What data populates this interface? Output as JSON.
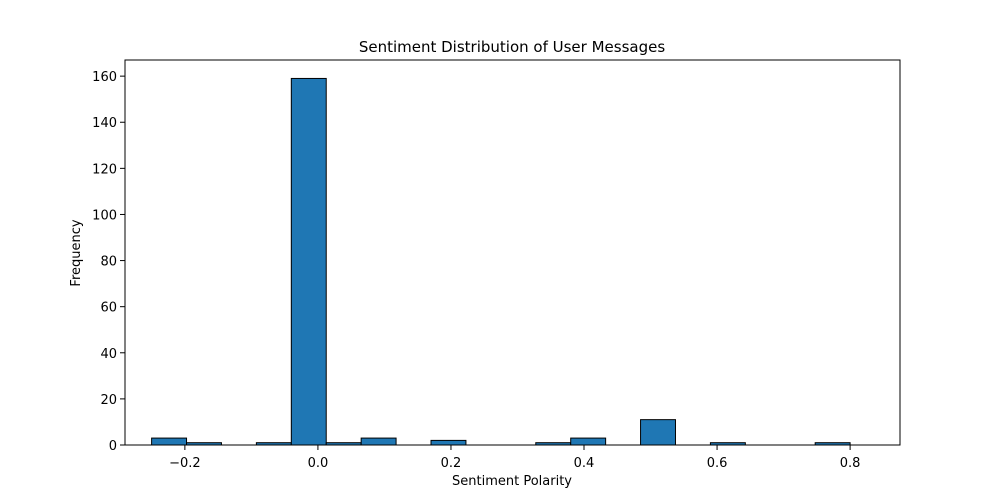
{
  "chart_data": {
    "type": "bar",
    "title": "Sentiment Distribution of User Messages",
    "xlabel": "Sentiment Polarity",
    "ylabel": "Frequency",
    "xlim": [
      -0.29,
      0.875
    ],
    "ylim": [
      0,
      167
    ],
    "x_ticks": [
      -0.2,
      0.0,
      0.2,
      0.4,
      0.6,
      0.8
    ],
    "x_tick_labels": [
      "−0.2",
      "0.0",
      "0.2",
      "0.4",
      "0.6",
      "0.8"
    ],
    "y_ticks": [
      0,
      20,
      40,
      60,
      80,
      100,
      120,
      140,
      160
    ],
    "y_tick_labels": [
      "0",
      "20",
      "40",
      "60",
      "80",
      "100",
      "120",
      "140",
      "160"
    ],
    "bin_edges": [
      -0.25,
      -0.1975,
      -0.145,
      -0.0925,
      -0.04,
      0.0125,
      0.065,
      0.1175,
      0.17,
      0.2225,
      0.275,
      0.3275,
      0.38,
      0.4325,
      0.485,
      0.5375,
      0.59,
      0.6425,
      0.695,
      0.7475,
      0.8
    ],
    "values": [
      3,
      1,
      0,
      1,
      159,
      1,
      3,
      0,
      2,
      0,
      0,
      1,
      3,
      0,
      11,
      0,
      1,
      0,
      0,
      1
    ],
    "colors": {
      "bar_fill": "#1f77b4",
      "bar_edge": "#000000",
      "axis": "#000000"
    },
    "grid": false
  }
}
